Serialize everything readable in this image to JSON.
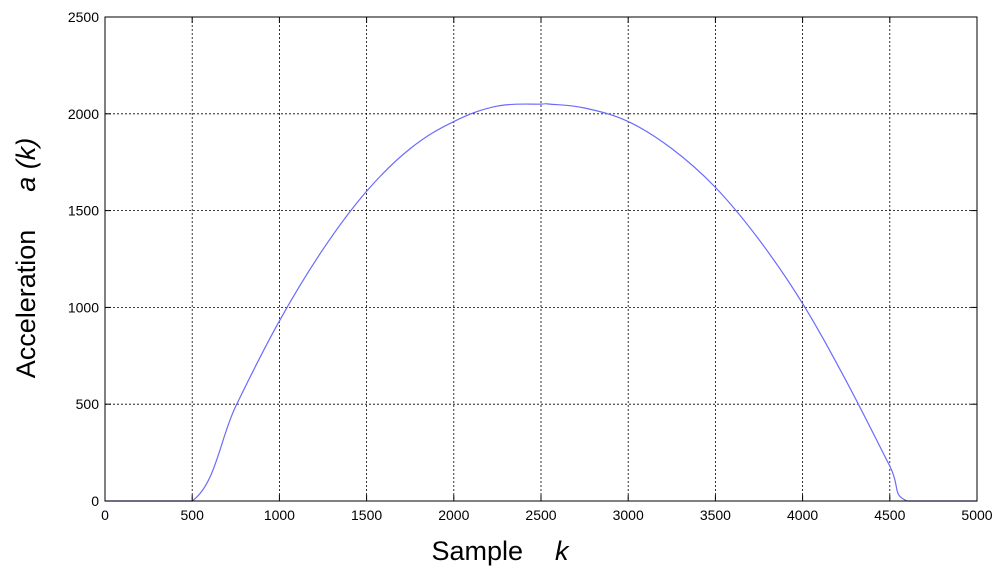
{
  "chart_data": {
    "type": "line",
    "xlabel": "Sample",
    "xlabel_var": "k",
    "ylabel": "Acceleration",
    "ylabel_var": "a (k)",
    "xlim": [
      0,
      5000
    ],
    "ylim": [
      0,
      2500
    ],
    "xticks": [
      0,
      500,
      1000,
      1500,
      2000,
      2500,
      3000,
      3500,
      4000,
      4500,
      5000
    ],
    "yticks": [
      0,
      500,
      1000,
      1500,
      2000,
      2500
    ],
    "grid": true,
    "line_color": "#6b6bff",
    "series": [
      {
        "x": [
          0,
          500,
          750,
          1000,
          1250,
          1500,
          1750,
          2000,
          2250,
          2500,
          2550,
          2750,
          3000,
          3250,
          3500,
          3750,
          4000,
          4250,
          4500,
          4600,
          5000
        ],
        "values": [
          0,
          0,
          490,
          930,
          1300,
          1600,
          1820,
          1960,
          2040,
          2050,
          2050,
          2030,
          1960,
          1820,
          1620,
          1350,
          1020,
          620,
          180,
          0,
          0
        ]
      }
    ]
  }
}
